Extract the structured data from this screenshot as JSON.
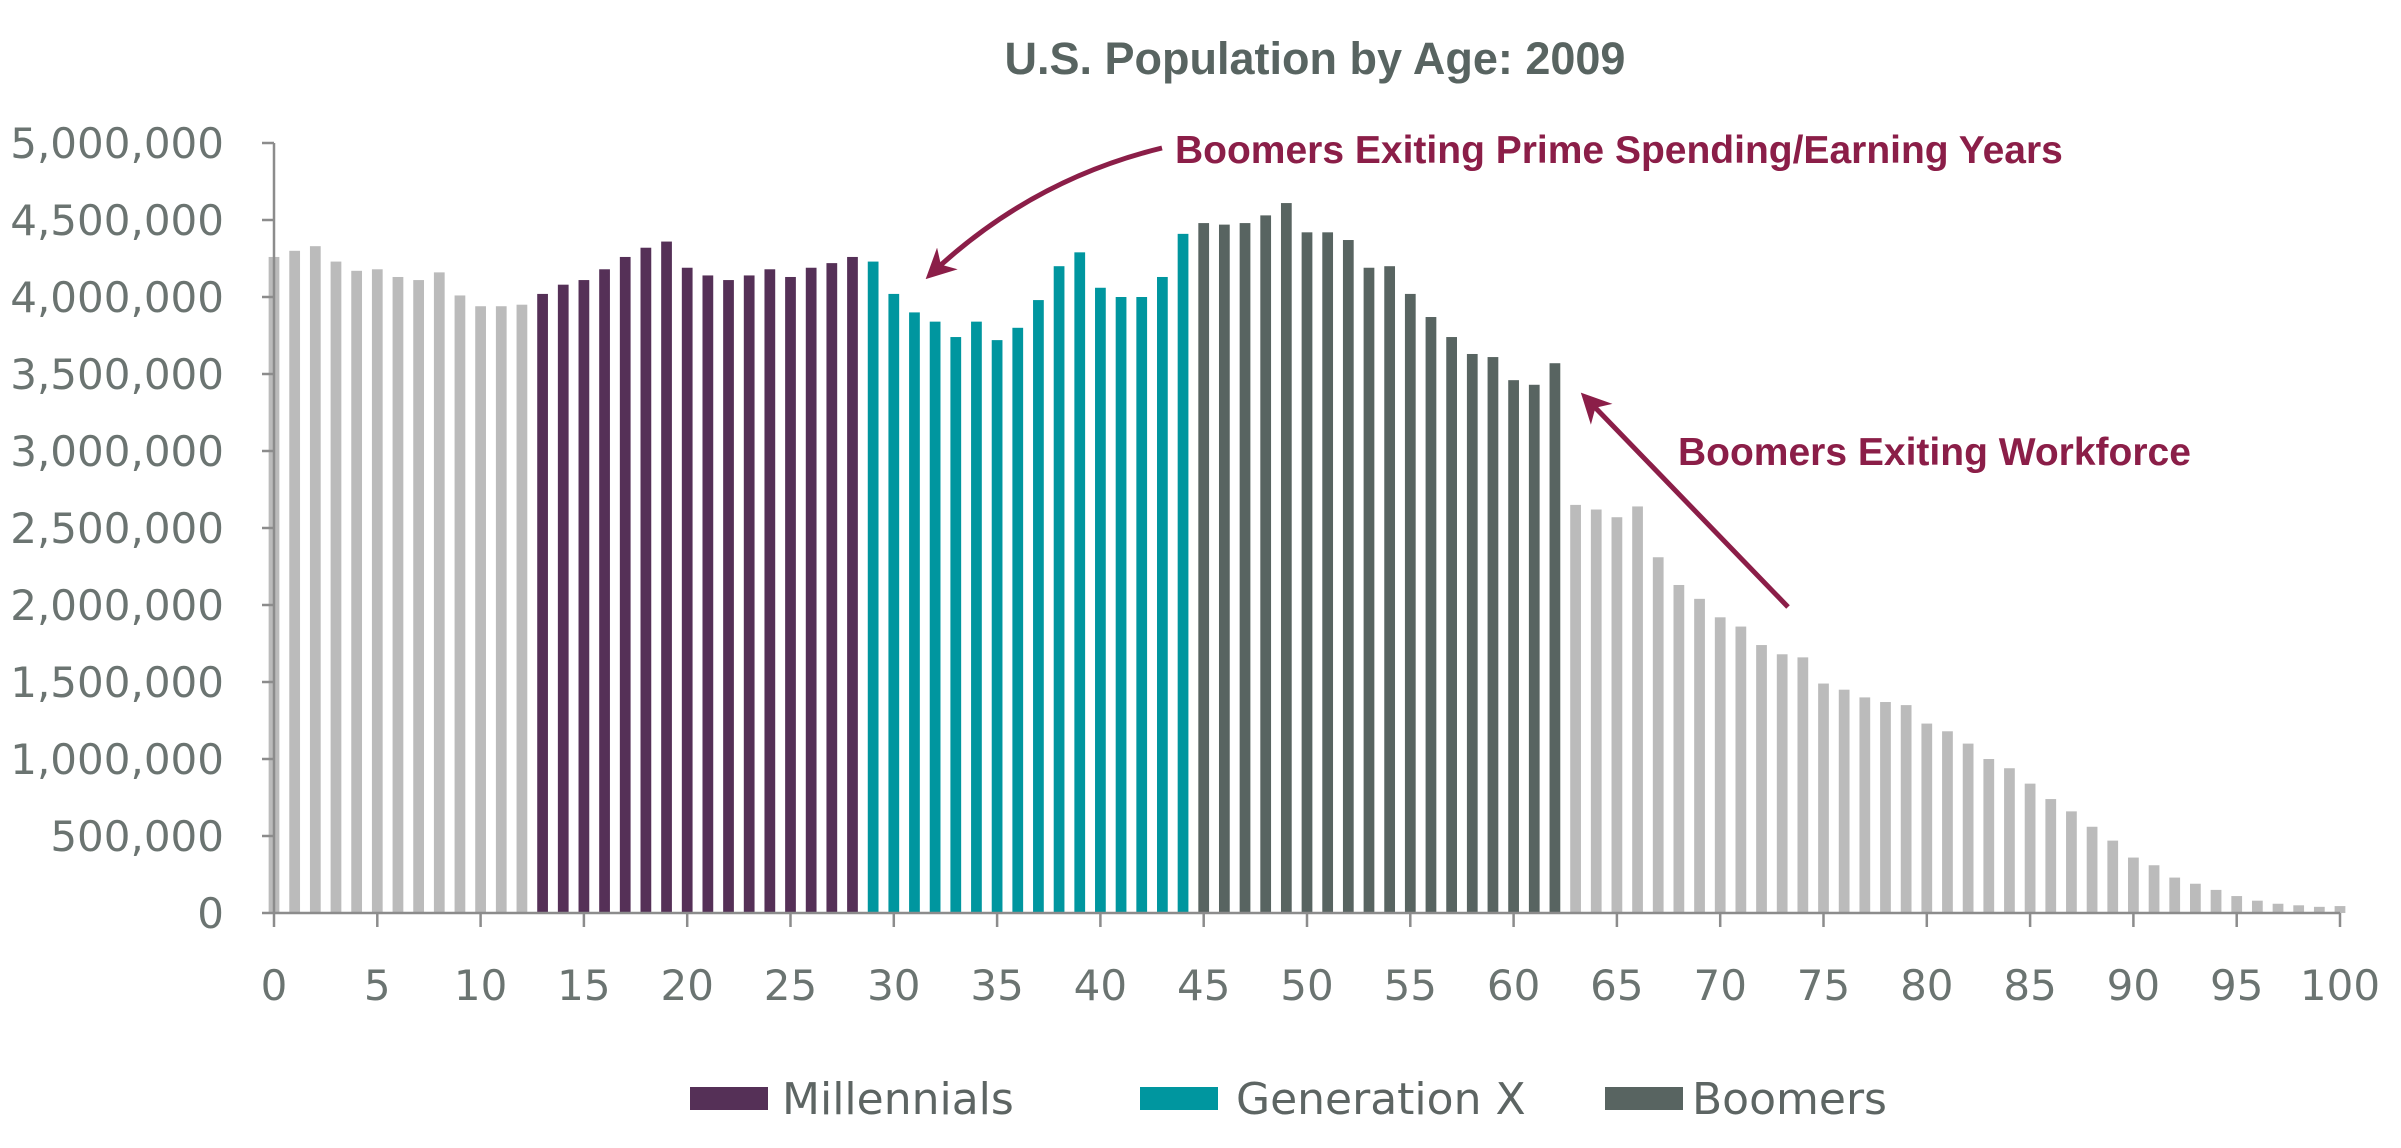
{
  "chart_data": {
    "type": "bar",
    "title": "U.S. Population by Age: 2009",
    "xlabel": "",
    "ylabel": "",
    "ylim": [
      0,
      5000000
    ],
    "yticks": [
      "0",
      "500,000",
      "1,000,000",
      "1,500,000",
      "2,000,000",
      "2,500,000",
      "3,000,000",
      "3,500,000",
      "4,000,000",
      "4,500,000",
      "5,000,000"
    ],
    "xticks": [
      "0",
      "5",
      "10",
      "15",
      "20",
      "25",
      "30",
      "35",
      "40",
      "45",
      "50",
      "55",
      "60",
      "65",
      "70",
      "75",
      "80",
      "85",
      "90",
      "95",
      "100"
    ],
    "x": [
      0,
      1,
      2,
      3,
      4,
      5,
      6,
      7,
      8,
      9,
      10,
      11,
      12,
      13,
      14,
      15,
      16,
      17,
      18,
      19,
      20,
      21,
      22,
      23,
      24,
      25,
      26,
      27,
      28,
      29,
      30,
      31,
      32,
      33,
      34,
      35,
      36,
      37,
      38,
      39,
      40,
      41,
      42,
      43,
      44,
      45,
      46,
      47,
      48,
      49,
      50,
      51,
      52,
      53,
      54,
      55,
      56,
      57,
      58,
      59,
      60,
      61,
      62,
      63,
      64,
      65,
      66,
      67,
      68,
      69,
      70,
      71,
      72,
      73,
      74,
      75,
      76,
      77,
      78,
      79,
      80,
      81,
      82,
      83,
      84,
      85,
      86,
      87,
      88,
      89,
      90,
      91,
      92,
      93,
      94,
      95,
      96,
      97,
      98,
      99,
      100
    ],
    "values": [
      4260000,
      4300000,
      4330000,
      4230000,
      4170000,
      4180000,
      4130000,
      4110000,
      4160000,
      4010000,
      3940000,
      3940000,
      3950000,
      4020000,
      4080000,
      4110000,
      4180000,
      4260000,
      4320000,
      4360000,
      4190000,
      4140000,
      4110000,
      4140000,
      4180000,
      4130000,
      4190000,
      4220000,
      4260000,
      4230000,
      4020000,
      3900000,
      3840000,
      3740000,
      3840000,
      3720000,
      3800000,
      3980000,
      4200000,
      4290000,
      4060000,
      4000000,
      4000000,
      4130000,
      4410000,
      4480000,
      4470000,
      4480000,
      4530000,
      4610000,
      4420000,
      4420000,
      4370000,
      4190000,
      4200000,
      4020000,
      3870000,
      3740000,
      3630000,
      3610000,
      3460000,
      3430000,
      3570000,
      2650000,
      2620000,
      2570000,
      2640000,
      2310000,
      2130000,
      2040000,
      1920000,
      1860000,
      1740000,
      1680000,
      1660000,
      1490000,
      1450000,
      1400000,
      1370000,
      1350000,
      1230000,
      1180000,
      1100000,
      1000000,
      940000,
      840000,
      740000,
      660000,
      560000,
      470000,
      360000,
      310000,
      230000,
      190000,
      150000,
      110000,
      80000,
      60000,
      50000,
      40000,
      45000
    ],
    "groups": [
      {
        "name": "Millennials",
        "color": "#553057",
        "from": 13,
        "to": 28
      },
      {
        "name": "Generation X",
        "color": "#00969f",
        "from": 29,
        "to": 44
      },
      {
        "name": "Boomers",
        "color": "#586461",
        "from": 45,
        "to": 62
      }
    ],
    "default_color": "#bbbbbb",
    "annotations": [
      {
        "text": "Boomers Exiting Prime Spending/Earning Years",
        "color": "#8b1e48",
        "points_to_age": 31
      },
      {
        "text": "Boomers Exiting Workforce",
        "color": "#8b1e48",
        "points_to_age": 62
      }
    ],
    "legend_position": "bottom",
    "grid": false
  }
}
